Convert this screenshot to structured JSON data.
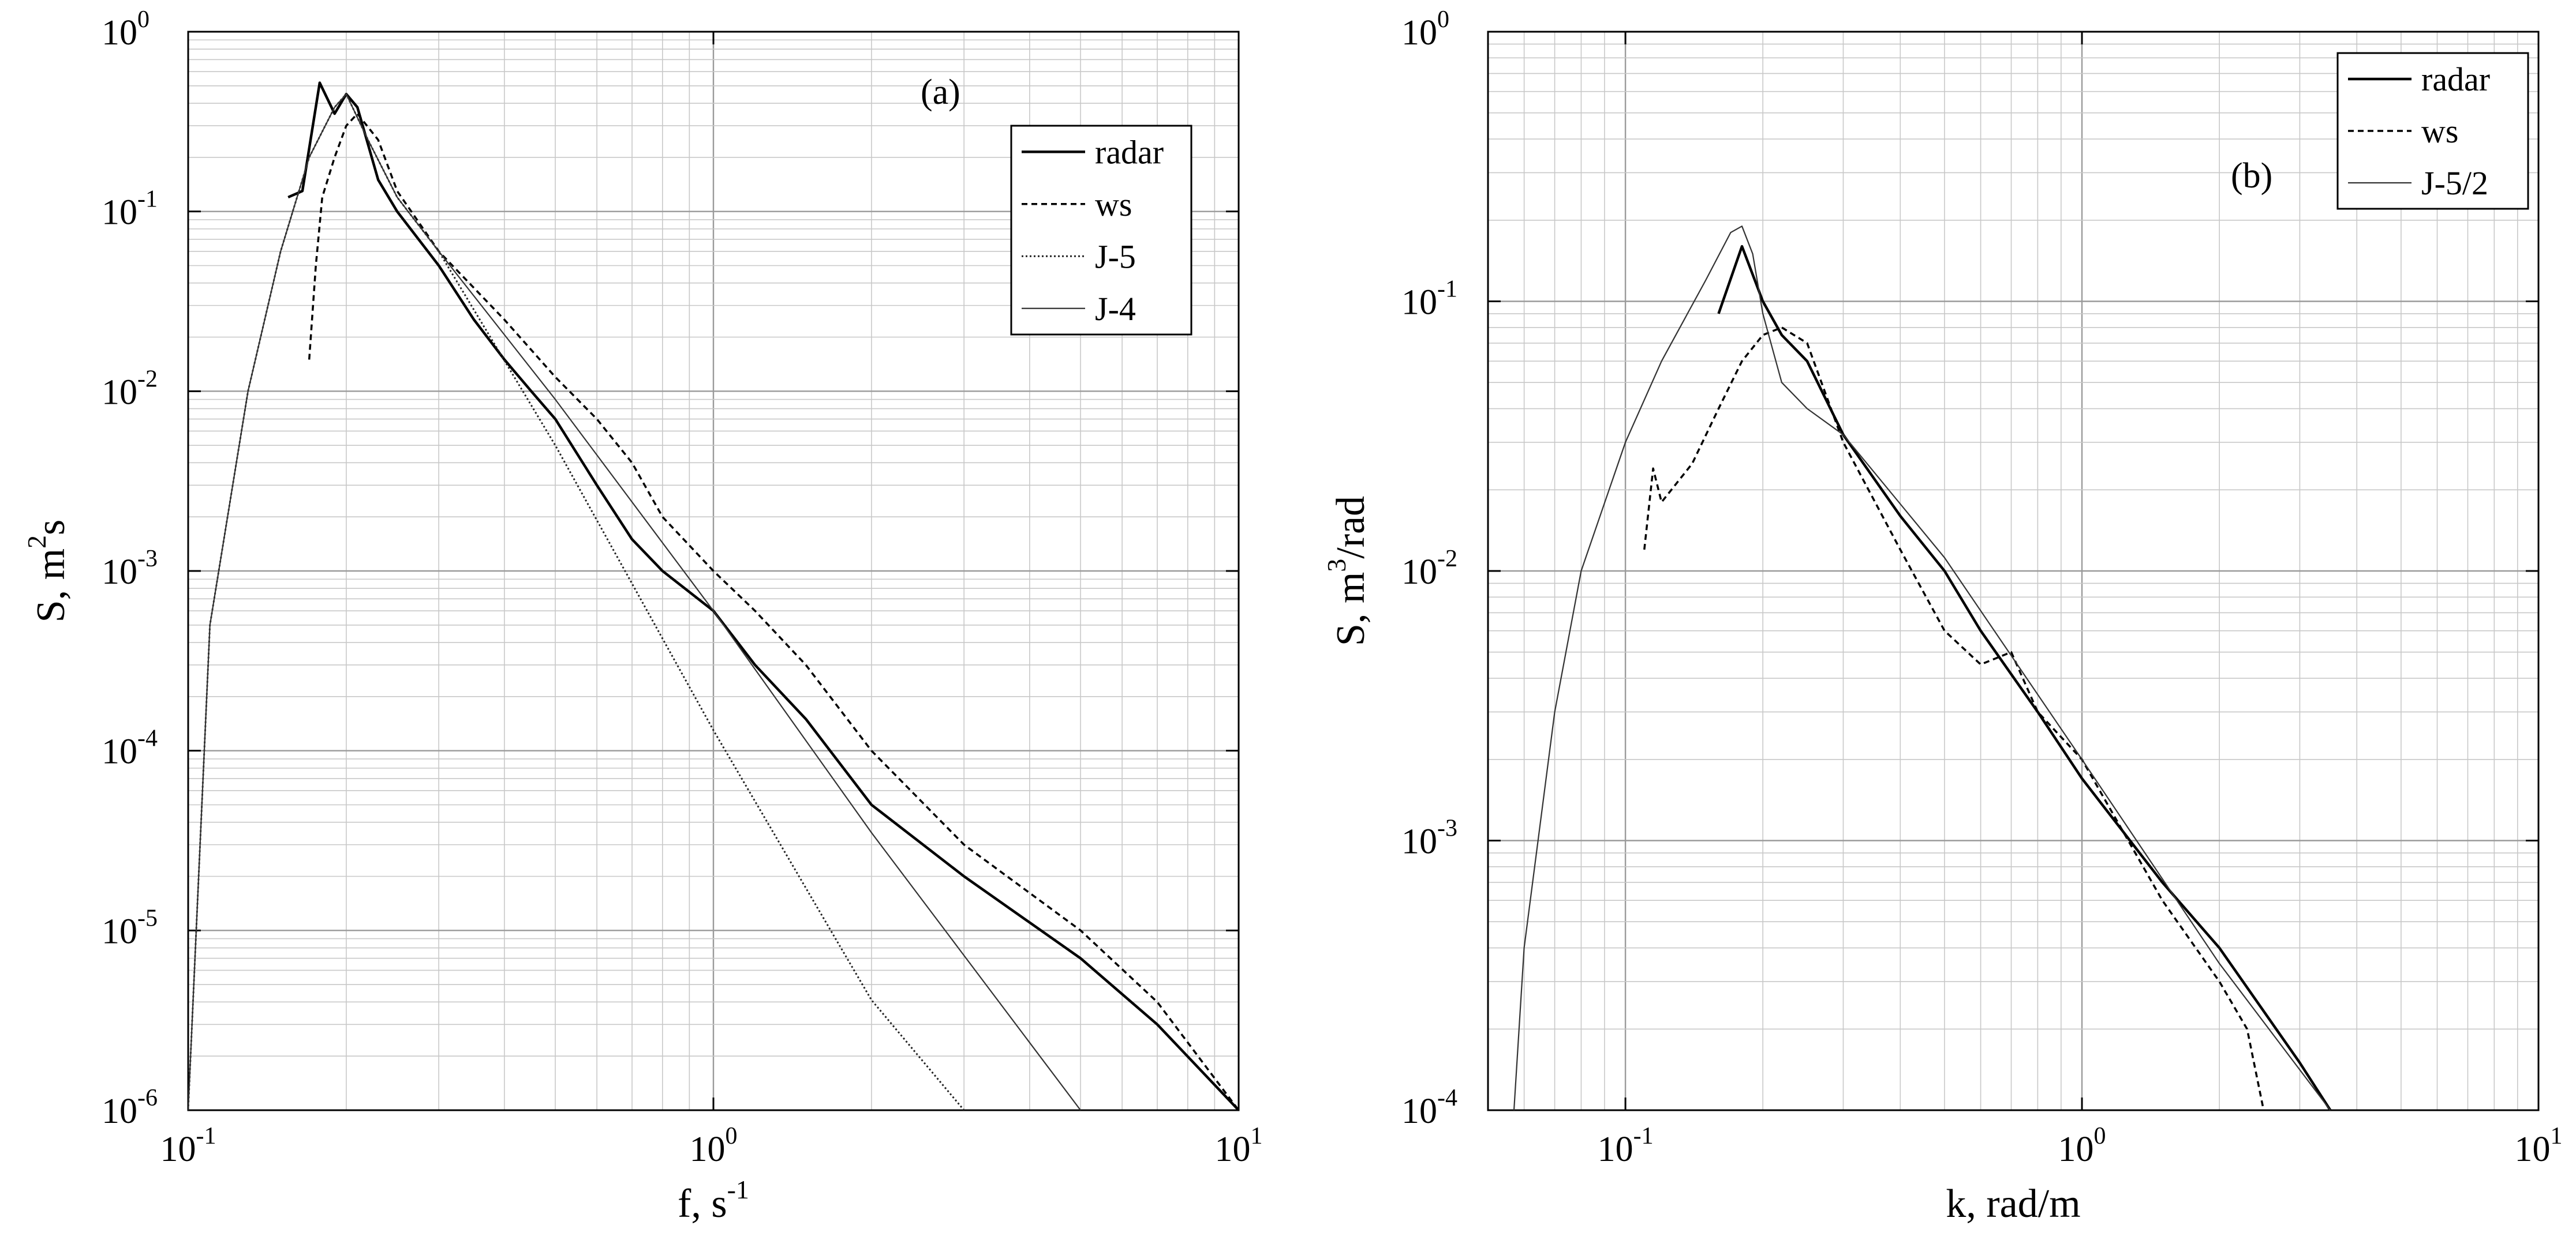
{
  "chart_data": [
    {
      "type": "line",
      "panel_label": "(a)",
      "xlabel": "f, s",
      "xlabel_sup": "-1",
      "ylabel": "S, m",
      "ylabel_sup": "2",
      "ylabel_tail": "s",
      "x_scale": "log",
      "y_scale": "log",
      "xlim": [
        0.1,
        10
      ],
      "ylim": [
        1e-06,
        1
      ],
      "grid": true,
      "legend_position": "top-right",
      "x_ticks": [
        {
          "base": "10",
          "exp": "-1"
        },
        {
          "base": "10",
          "exp": "0"
        },
        {
          "base": "10",
          "exp": "1"
        }
      ],
      "y_ticks": [
        {
          "base": "10",
          "exp": "-6"
        },
        {
          "base": "10",
          "exp": "-5"
        },
        {
          "base": "10",
          "exp": "-4"
        },
        {
          "base": "10",
          "exp": "-3"
        },
        {
          "base": "10",
          "exp": "-2"
        },
        {
          "base": "10",
          "exp": "-1"
        },
        {
          "base": "10",
          "exp": "0"
        }
      ],
      "series": [
        {
          "name": "radar",
          "style": "solid",
          "x": [
            0.155,
            0.165,
            0.178,
            0.19,
            0.2,
            0.21,
            0.23,
            0.25,
            0.3,
            0.35,
            0.4,
            0.45,
            0.5,
            0.6,
            0.7,
            0.8,
            1.0,
            1.2,
            1.5,
            2.0,
            3.0,
            5.0,
            7.0,
            10.0
          ],
          "y": [
            0.12,
            0.13,
            0.52,
            0.35,
            0.45,
            0.38,
            0.15,
            0.1,
            0.05,
            0.025,
            0.015,
            0.01,
            0.007,
            0.003,
            0.0015,
            0.001,
            0.0006,
            0.0003,
            0.00015,
            5e-05,
            2e-05,
            7e-06,
            3e-06,
            1e-06
          ]
        },
        {
          "name": "ws",
          "style": "dashed",
          "x": [
            0.17,
            0.175,
            0.18,
            0.19,
            0.2,
            0.21,
            0.23,
            0.25,
            0.3,
            0.4,
            0.5,
            0.6,
            0.7,
            0.8,
            1.0,
            1.2,
            1.5,
            2.0,
            3.0,
            5.0,
            7.0,
            10.0
          ],
          "y": [
            0.015,
            0.05,
            0.12,
            0.2,
            0.3,
            0.35,
            0.25,
            0.13,
            0.06,
            0.025,
            0.012,
            0.007,
            0.004,
            0.002,
            0.001,
            0.0006,
            0.0003,
            0.0001,
            3e-05,
            1e-05,
            4e-06,
            1e-06
          ]
        },
        {
          "name": "J-5",
          "style": "dotted",
          "x": [
            0.1,
            0.11,
            0.13,
            0.15,
            0.17,
            0.19,
            0.2,
            0.22,
            0.25,
            0.3,
            0.5,
            1.0,
            2.0,
            3.0
          ],
          "y": [
            1e-06,
            0.0005,
            0.01,
            0.06,
            0.2,
            0.38,
            0.45,
            0.25,
            0.12,
            0.06,
            0.005,
            0.00013,
            4.1e-06,
            1e-06
          ]
        },
        {
          "name": "J-4",
          "style": "thin",
          "x": [
            0.1,
            0.11,
            0.13,
            0.15,
            0.17,
            0.19,
            0.2,
            0.22,
            0.25,
            0.3,
            0.5,
            1.0,
            2.0,
            5.0
          ],
          "y": [
            1e-06,
            0.0005,
            0.01,
            0.06,
            0.2,
            0.38,
            0.45,
            0.25,
            0.12,
            0.06,
            0.009,
            0.0006,
            3.5e-05,
            1e-06
          ]
        }
      ]
    },
    {
      "type": "line",
      "panel_label": "(b)",
      "xlabel": "k, rad/m",
      "ylabel": "S,  m",
      "ylabel_sup": "3",
      "ylabel_tail": "/rad",
      "x_scale": "log",
      "y_scale": "log",
      "xlim": [
        0.05,
        10
      ],
      "ylim": [
        0.0001,
        1
      ],
      "grid": true,
      "legend_position": "top-right",
      "x_ticks": [
        {
          "base": "10",
          "exp": "-1"
        },
        {
          "base": "10",
          "exp": "0"
        },
        {
          "base": "10",
          "exp": "1"
        }
      ],
      "y_ticks": [
        {
          "base": "10",
          "exp": "-4"
        },
        {
          "base": "10",
          "exp": "-3"
        },
        {
          "base": "10",
          "exp": "-2"
        },
        {
          "base": "10",
          "exp": "-1"
        },
        {
          "base": "10",
          "exp": "0"
        }
      ],
      "series": [
        {
          "name": "radar",
          "style": "solid",
          "x": [
            0.16,
            0.18,
            0.2,
            0.22,
            0.25,
            0.3,
            0.4,
            0.5,
            0.6,
            0.8,
            1.0,
            1.5,
            2.0,
            3.0,
            3.5
          ],
          "y": [
            0.09,
            0.16,
            0.1,
            0.075,
            0.06,
            0.032,
            0.016,
            0.01,
            0.006,
            0.003,
            0.0017,
            0.0007,
            0.0004,
            0.00015,
            0.0001
          ]
        },
        {
          "name": "ws",
          "style": "dashed",
          "x": [
            0.11,
            0.115,
            0.12,
            0.14,
            0.16,
            0.18,
            0.2,
            0.22,
            0.25,
            0.3,
            0.4,
            0.5,
            0.6,
            0.7,
            0.8,
            1.0,
            1.5,
            2.0,
            2.3,
            2.5
          ],
          "y": [
            0.012,
            0.024,
            0.018,
            0.025,
            0.04,
            0.06,
            0.075,
            0.08,
            0.07,
            0.03,
            0.012,
            0.006,
            0.0045,
            0.005,
            0.003,
            0.002,
            0.0006,
            0.0003,
            0.0002,
            0.0001
          ]
        },
        {
          "name": "J-5/2",
          "style": "thin",
          "x": [
            0.057,
            0.06,
            0.07,
            0.08,
            0.1,
            0.12,
            0.15,
            0.17,
            0.18,
            0.19,
            0.2,
            0.22,
            0.25,
            0.3,
            0.5,
            1.0,
            2.0,
            3.5
          ],
          "y": [
            0.0001,
            0.0004,
            0.003,
            0.01,
            0.03,
            0.06,
            0.12,
            0.18,
            0.19,
            0.15,
            0.09,
            0.05,
            0.04,
            0.032,
            0.0112,
            0.002,
            0.00035,
            0.0001
          ]
        }
      ]
    }
  ]
}
